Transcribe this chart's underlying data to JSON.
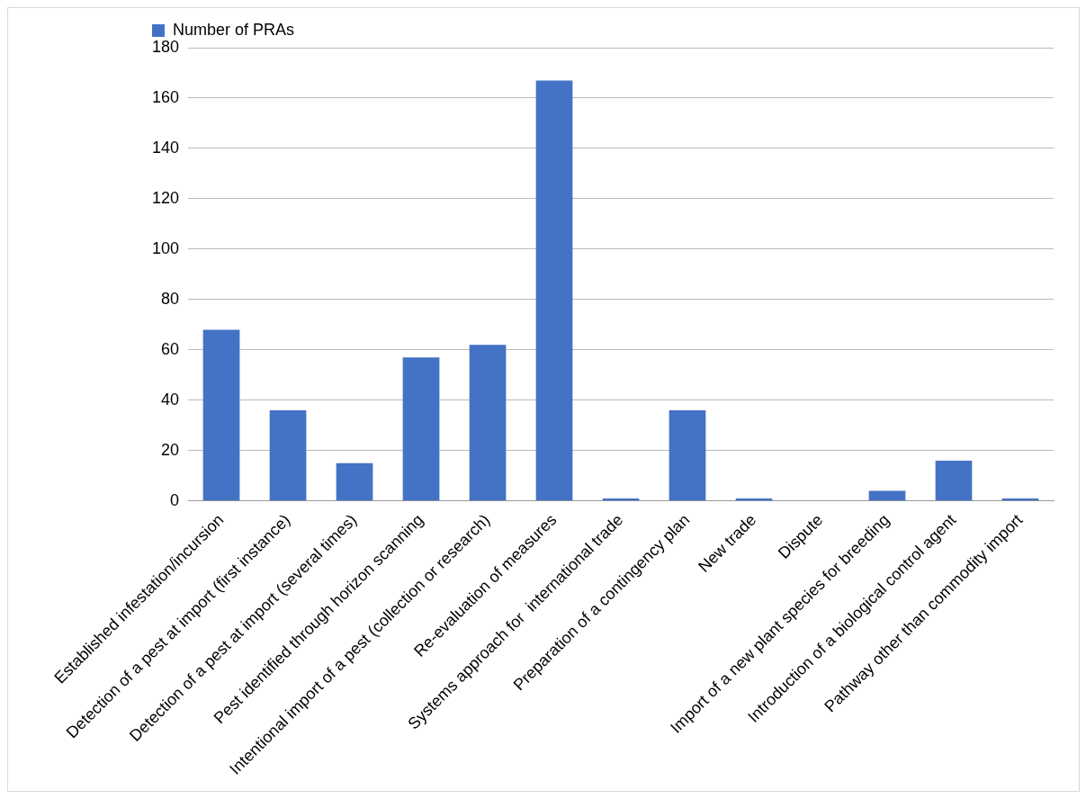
{
  "chart_data": {
    "type": "bar",
    "categories": [
      "Established infestation/incursion",
      "Detection of a pest at import (first instance)",
      "Detection of a pest at import (several times)",
      "Pest identified through horizon scanning",
      "Intentional import of a pest (collection or research)",
      "Re-evaluation of measures",
      "Systems approach for  international trade",
      "Preparation of a contingency plan",
      "New trade",
      "Dispute",
      "Import of a new plant species for breeding",
      "Introduction of a biological control agent",
      "Pathway other than commodity import"
    ],
    "series": [
      {
        "name": "Number of PRAs",
        "color": "#4472c4",
        "values": [
          68,
          36,
          15,
          57,
          62,
          167,
          1,
          36,
          1,
          0,
          4,
          16,
          1
        ]
      }
    ],
    "ylim": [
      0,
      180
    ],
    "yticks": [
      0,
      20,
      40,
      60,
      80,
      100,
      120,
      140,
      160,
      180
    ],
    "grid": "y",
    "legend": "top left"
  }
}
